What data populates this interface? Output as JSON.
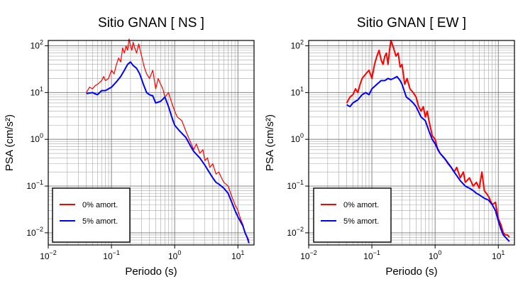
{
  "chart_data": [
    {
      "type": "line",
      "title": "Sitio GNAN [ NS ]",
      "xlabel": "Periodo (s)",
      "ylabel": "PSA (cm/s²)",
      "x_scale": "log",
      "y_scale": "log",
      "xlim": [
        0.01,
        18
      ],
      "ylim": [
        0.0055,
        130
      ],
      "grid": true,
      "legend_position": "bottom-left",
      "x_ticks": [
        {
          "base": "10",
          "exp": "−2"
        },
        {
          "base": "10",
          "exp": "−1"
        },
        {
          "base": "10",
          "exp": "0"
        },
        {
          "base": "10",
          "exp": "1"
        }
      ],
      "y_ticks": [
        {
          "base": "10",
          "exp": "−2"
        },
        {
          "base": "10",
          "exp": "−1"
        },
        {
          "base": "10",
          "exp": "0"
        },
        {
          "base": "10",
          "exp": "1"
        },
        {
          "base": "10",
          "exp": "2"
        }
      ],
      "series": [
        {
          "name": "0% amort.",
          "color": "#ff0000",
          "points": [
            [
              0.04,
              10
            ],
            [
              0.045,
              13
            ],
            [
              0.05,
              12
            ],
            [
              0.055,
              14
            ],
            [
              0.06,
              15
            ],
            [
              0.07,
              18
            ],
            [
              0.075,
              22
            ],
            [
              0.08,
              18
            ],
            [
              0.09,
              20
            ],
            [
              0.1,
              30
            ],
            [
              0.11,
              25
            ],
            [
              0.12,
              40
            ],
            [
              0.13,
              55
            ],
            [
              0.14,
              45
            ],
            [
              0.15,
              90
            ],
            [
              0.16,
              70
            ],
            [
              0.17,
              100
            ],
            [
              0.18,
              80
            ],
            [
              0.19,
              140
            ],
            [
              0.2,
              100
            ],
            [
              0.21,
              80
            ],
            [
              0.22,
              120
            ],
            [
              0.23,
              95
            ],
            [
              0.25,
              70
            ],
            [
              0.27,
              110
            ],
            [
              0.3,
              60
            ],
            [
              0.33,
              35
            ],
            [
              0.36,
              25
            ],
            [
              0.4,
              20
            ],
            [
              0.45,
              30
            ],
            [
              0.5,
              12
            ],
            [
              0.55,
              20
            ],
            [
              0.6,
              15
            ],
            [
              0.65,
              12
            ],
            [
              0.7,
              8
            ],
            [
              0.8,
              10
            ],
            [
              0.9,
              6
            ],
            [
              1.0,
              4
            ],
            [
              1.1,
              3
            ],
            [
              1.3,
              2.5
            ],
            [
              1.5,
              1.5
            ],
            [
              1.7,
              1
            ],
            [
              2.0,
              0.6
            ],
            [
              2.2,
              0.8
            ],
            [
              2.5,
              0.5
            ],
            [
              2.8,
              0.6
            ],
            [
              3.0,
              0.35
            ],
            [
              3.3,
              0.4
            ],
            [
              3.6,
              0.25
            ],
            [
              4.0,
              0.3
            ],
            [
              4.5,
              0.18
            ],
            [
              5.0,
              0.2
            ],
            [
              5.5,
              0.15
            ],
            [
              6.0,
              0.12
            ],
            [
              7.0,
              0.1
            ],
            [
              8.0,
              0.06
            ],
            [
              9.0,
              0.04
            ],
            [
              10.0,
              0.03
            ],
            [
              11.0,
              0.02
            ],
            [
              12.0,
              0.015
            ],
            [
              13.0,
              0.01
            ],
            [
              14.0,
              0.008
            ],
            [
              15.0,
              0.007
            ]
          ]
        },
        {
          "name": "5% amort.",
          "color": "#0000ff",
          "points": [
            [
              0.04,
              9.5
            ],
            [
              0.05,
              10
            ],
            [
              0.06,
              9
            ],
            [
              0.07,
              11
            ],
            [
              0.08,
              11
            ],
            [
              0.1,
              13
            ],
            [
              0.12,
              17
            ],
            [
              0.14,
              22
            ],
            [
              0.16,
              30
            ],
            [
              0.18,
              40
            ],
            [
              0.2,
              45
            ],
            [
              0.22,
              38
            ],
            [
              0.25,
              33
            ],
            [
              0.28,
              25
            ],
            [
              0.32,
              15
            ],
            [
              0.36,
              10
            ],
            [
              0.4,
              9
            ],
            [
              0.45,
              8.5
            ],
            [
              0.5,
              6
            ],
            [
              0.6,
              6.5
            ],
            [
              0.7,
              8
            ],
            [
              0.8,
              5
            ],
            [
              0.9,
              3
            ],
            [
              1.0,
              2
            ],
            [
              1.2,
              1.5
            ],
            [
              1.5,
              1.1
            ],
            [
              1.8,
              0.7
            ],
            [
              2.0,
              0.55
            ],
            [
              2.5,
              0.4
            ],
            [
              3.0,
              0.28
            ],
            [
              3.5,
              0.2
            ],
            [
              4.0,
              0.15
            ],
            [
              4.5,
              0.12
            ],
            [
              5.0,
              0.11
            ],
            [
              6.0,
              0.09
            ],
            [
              7.0,
              0.07
            ],
            [
              8.0,
              0.045
            ],
            [
              9.0,
              0.03
            ],
            [
              10.0,
              0.022
            ],
            [
              12.0,
              0.014
            ],
            [
              13.0,
              0.01
            ],
            [
              14.0,
              0.008
            ],
            [
              15.0,
              0.006
            ]
          ]
        }
      ]
    },
    {
      "type": "line",
      "title": "Sitio GNAN [ EW ]",
      "xlabel": "Periodo (s)",
      "ylabel": "PSA (cm/s²)",
      "x_scale": "log",
      "y_scale": "log",
      "xlim": [
        0.01,
        18
      ],
      "ylim": [
        0.0055,
        130
      ],
      "grid": true,
      "legend_position": "bottom-left",
      "x_ticks": [
        {
          "base": "10",
          "exp": "−2"
        },
        {
          "base": "10",
          "exp": "−1"
        },
        {
          "base": "10",
          "exp": "0"
        },
        {
          "base": "10",
          "exp": "1"
        }
      ],
      "y_ticks": [
        {
          "base": "10",
          "exp": "−2"
        },
        {
          "base": "10",
          "exp": "−1"
        },
        {
          "base": "10",
          "exp": "0"
        },
        {
          "base": "10",
          "exp": "1"
        },
        {
          "base": "10",
          "exp": "2"
        }
      ],
      "series": [
        {
          "name": "0% amort.",
          "color": "#ff0000",
          "points": [
            [
              0.04,
              6
            ],
            [
              0.045,
              8
            ],
            [
              0.05,
              9
            ],
            [
              0.055,
              12
            ],
            [
              0.06,
              10
            ],
            [
              0.065,
              15
            ],
            [
              0.07,
              20
            ],
            [
              0.08,
              25
            ],
            [
              0.09,
              30
            ],
            [
              0.1,
              20
            ],
            [
              0.11,
              40
            ],
            [
              0.12,
              60
            ],
            [
              0.13,
              80
            ],
            [
              0.14,
              50
            ],
            [
              0.15,
              40
            ],
            [
              0.16,
              60
            ],
            [
              0.17,
              70
            ],
            [
              0.18,
              40
            ],
            [
              0.19,
              80
            ],
            [
              0.2,
              130
            ],
            [
              0.22,
              90
            ],
            [
              0.24,
              60
            ],
            [
              0.26,
              70
            ],
            [
              0.28,
              35
            ],
            [
              0.3,
              40
            ],
            [
              0.33,
              15
            ],
            [
              0.36,
              20
            ],
            [
              0.4,
              12
            ],
            [
              0.45,
              10
            ],
            [
              0.5,
              8
            ],
            [
              0.55,
              5
            ],
            [
              0.6,
              4
            ],
            [
              0.65,
              5
            ],
            [
              0.7,
              3
            ],
            [
              0.75,
              4
            ],
            [
              0.8,
              2.5
            ],
            [
              0.9,
              1.2
            ],
            [
              1.0,
              1.0
            ],
            [
              1.1,
              0.6
            ],
            [
              1.2,
              0.5
            ],
            [
              1.4,
              0.4
            ],
            [
              1.6,
              0.3
            ],
            [
              1.8,
              0.25
            ],
            [
              2.0,
              0.2
            ],
            [
              2.2,
              0.25
            ],
            [
              2.5,
              0.15
            ],
            [
              2.8,
              0.2
            ],
            [
              3.0,
              0.12
            ],
            [
              3.5,
              0.15
            ],
            [
              4.0,
              0.1
            ],
            [
              4.5,
              0.12
            ],
            [
              5.0,
              0.09
            ],
            [
              5.5,
              0.2
            ],
            [
              6.0,
              0.08
            ],
            [
              7.0,
              0.06
            ],
            [
              8.0,
              0.04
            ],
            [
              9.0,
              0.045
            ],
            [
              10.0,
              0.02
            ],
            [
              11.0,
              0.015
            ],
            [
              12.0,
              0.01
            ],
            [
              13.0,
              0.009
            ],
            [
              14.0,
              0.009
            ],
            [
              15.0,
              0.008
            ]
          ]
        },
        {
          "name": "5% amort.",
          "color": "#0000ff",
          "points": [
            [
              0.04,
              5.5
            ],
            [
              0.045,
              5
            ],
            [
              0.05,
              6
            ],
            [
              0.06,
              7
            ],
            [
              0.07,
              9
            ],
            [
              0.08,
              10
            ],
            [
              0.09,
              9
            ],
            [
              0.1,
              12
            ],
            [
              0.12,
              15
            ],
            [
              0.14,
              18
            ],
            [
              0.16,
              18
            ],
            [
              0.18,
              20
            ],
            [
              0.2,
              19
            ],
            [
              0.22,
              20
            ],
            [
              0.25,
              22
            ],
            [
              0.28,
              18
            ],
            [
              0.3,
              15
            ],
            [
              0.35,
              8
            ],
            [
              0.4,
              7
            ],
            [
              0.45,
              6
            ],
            [
              0.5,
              5
            ],
            [
              0.6,
              3
            ],
            [
              0.7,
              2.5
            ],
            [
              0.8,
              1.5
            ],
            [
              0.9,
              1.0
            ],
            [
              1.0,
              0.8
            ],
            [
              1.2,
              0.5
            ],
            [
              1.5,
              0.35
            ],
            [
              1.8,
              0.25
            ],
            [
              2.0,
              0.2
            ],
            [
              2.5,
              0.13
            ],
            [
              3.0,
              0.1
            ],
            [
              3.5,
              0.09
            ],
            [
              4.0,
              0.08
            ],
            [
              4.5,
              0.07
            ],
            [
              5.0,
              0.065
            ],
            [
              6.0,
              0.055
            ],
            [
              7.0,
              0.05
            ],
            [
              8.0,
              0.04
            ],
            [
              9.0,
              0.03
            ],
            [
              10.0,
              0.018
            ],
            [
              11.0,
              0.012
            ],
            [
              12.0,
              0.009
            ],
            [
              13.0,
              0.008
            ],
            [
              15.0,
              0.0065
            ]
          ]
        }
      ]
    }
  ]
}
